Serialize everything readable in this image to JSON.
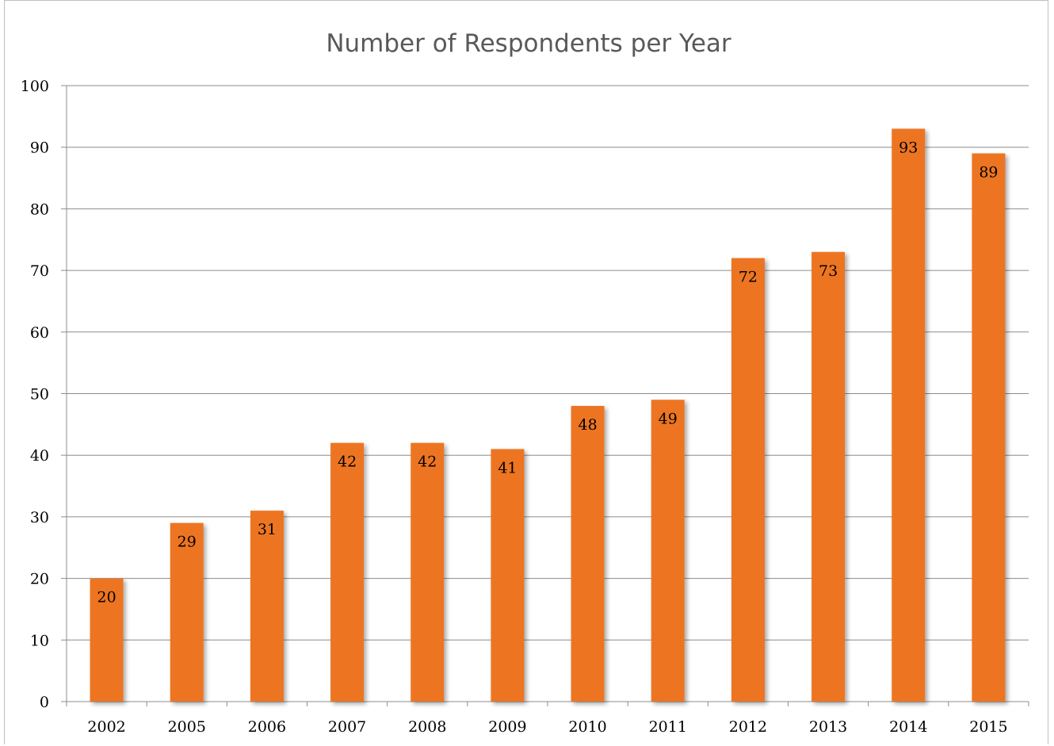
{
  "chart_data": {
    "type": "bar",
    "title": "Number of Respondents per Year",
    "xlabel": "",
    "ylabel": "",
    "categories": [
      "2002",
      "2005",
      "2006",
      "2007",
      "2008",
      "2009",
      "2010",
      "2011",
      "2012",
      "2013",
      "2014",
      "2015"
    ],
    "values": [
      20,
      29,
      31,
      42,
      42,
      41,
      48,
      49,
      72,
      73,
      93,
      89
    ],
    "ylim": [
      0,
      100
    ],
    "yticks": [
      "0",
      "10",
      "20",
      "30",
      "40",
      "50",
      "60",
      "70",
      "80",
      "90",
      "100"
    ],
    "grid": true,
    "legend": "none",
    "data_labels": "inside-end",
    "bar_color": "#ED7422"
  }
}
